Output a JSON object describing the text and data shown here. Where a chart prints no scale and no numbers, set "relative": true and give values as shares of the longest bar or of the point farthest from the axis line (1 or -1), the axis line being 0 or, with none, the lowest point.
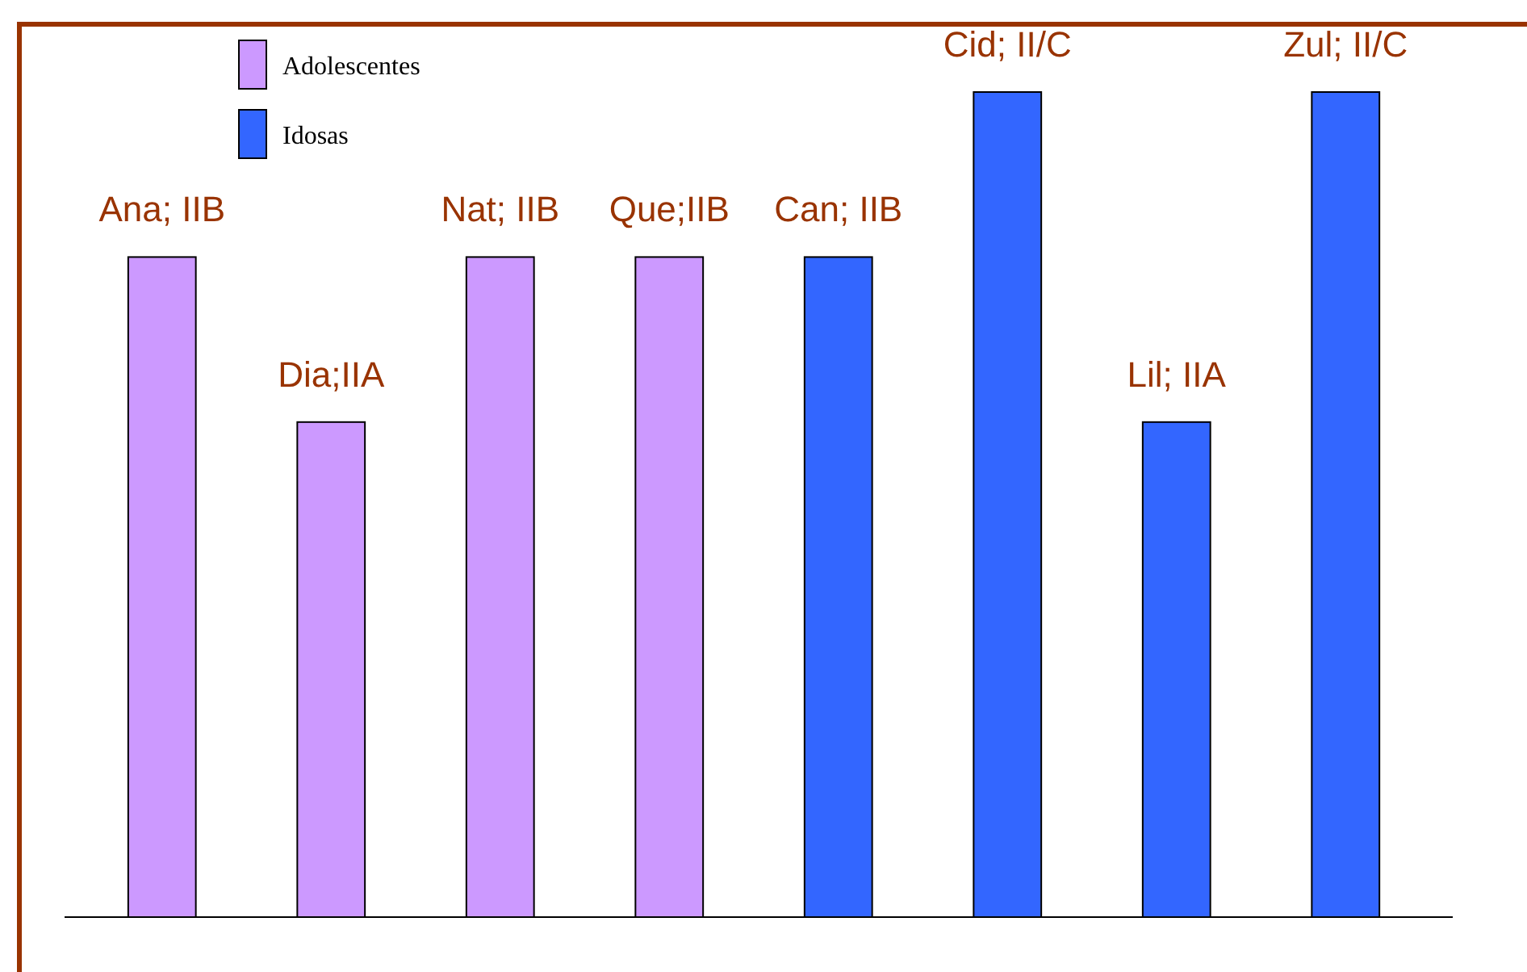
{
  "chart_data": {
    "type": "bar",
    "relative": true,
    "categories": [
      "Ana; IIB",
      "Dia;IIA",
      "Nat; IIB",
      "Que;IIB",
      "Can; IIB",
      "Cid; II/C",
      "Lil; IIA",
      "Zul; II/C"
    ],
    "series": [
      {
        "name": "Adolescentes",
        "color": "#cc99ff",
        "values": [
          0.8,
          0.6,
          0.8,
          0.8,
          null,
          null,
          null,
          null
        ]
      },
      {
        "name": "Idosas",
        "color": "#3366ff",
        "values": [
          null,
          null,
          null,
          null,
          0.8,
          1,
          0.6,
          1
        ]
      }
    ],
    "legend": "top left",
    "grid": false
  }
}
